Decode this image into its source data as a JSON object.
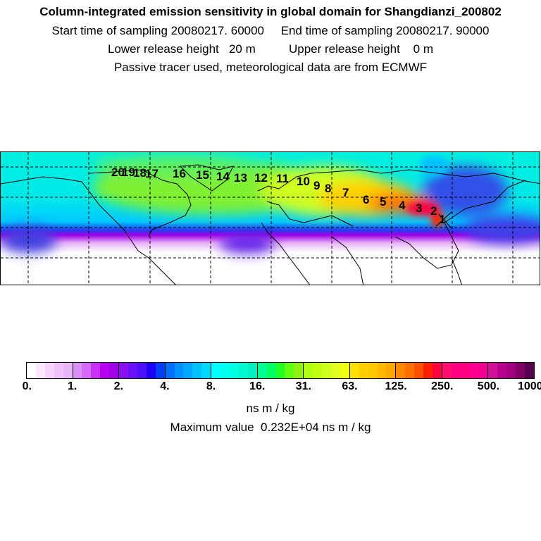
{
  "title": {
    "line1": "Column-integrated emission sensitivity in global domain for Shangdianzi_200802",
    "line2": "Start time of sampling 20080217. 60000     End time of sampling 20080217. 90000",
    "line3": "Lower release height   20 m          Upper release height    0 m",
    "line4": "Passive tracer used, meteorological data are from ECMWF"
  },
  "map": {
    "trajectory_labels": [
      "20",
      "19",
      "18",
      "17",
      "16",
      "15",
      "14",
      "13",
      "12",
      "11",
      "10",
      "9",
      "8",
      "7",
      "6",
      "5",
      "4",
      "3",
      "2",
      "1"
    ]
  },
  "colorbar": {
    "ticks": [
      "0.",
      "1.",
      "2.",
      "4.",
      "8.",
      "16.",
      "31.",
      "63.",
      "125.",
      "250.",
      "500.",
      "1000."
    ],
    "segments": [
      [
        "#ffffff",
        "#fbe8ff",
        "#f6d4fd",
        "#f0c4fb",
        "#eab4f8"
      ],
      [
        "#d890f5",
        "#d66af8",
        "#c830f5",
        "#b800f0",
        "#a000e8"
      ],
      [
        "#8a10f0",
        "#6a10f5",
        "#4a10f8",
        "#2000f5",
        "#0040f5"
      ],
      [
        "#0070ff",
        "#0090ff",
        "#00a8ff",
        "#00c0ff",
        "#00d8ff"
      ],
      [
        "#00ffff",
        "#00fff0",
        "#00ffe0",
        "#00f8d0",
        "#00f0c0"
      ],
      [
        "#00ff90",
        "#00ff60",
        "#20ff20",
        "#60ff10",
        "#90f010"
      ],
      [
        "#b0ff10",
        "#c0ff10",
        "#d0ff20",
        "#e0ff20",
        "#f0ff10"
      ],
      [
        "#ffe000",
        "#ffd000",
        "#ffc800",
        "#ffb800",
        "#ffa800"
      ],
      [
        "#ff8800",
        "#ff7000",
        "#ff5000",
        "#ff2000",
        "#ff0040"
      ],
      [
        "#ff1070",
        "#ff0080",
        "#ff0080",
        "#ff0090",
        "#f00090"
      ],
      [
        "#d01098",
        "#b80090",
        "#a00080",
        "#800068",
        "#580050"
      ]
    ],
    "unit": "ns m / kg",
    "max_value": "Maximum value  0.232E+04 ns m / kg"
  }
}
